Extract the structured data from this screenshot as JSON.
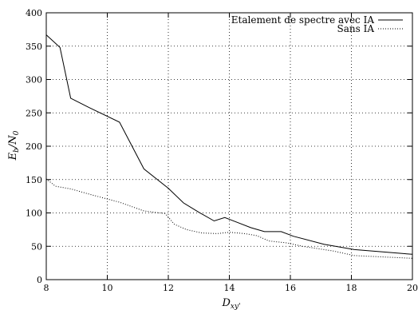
{
  "chart_data": {
    "type": "line",
    "title": "",
    "xlabel_main": "D",
    "xlabel_sub": "xy'",
    "ylabel_main": "E",
    "ylabel_sub_b": "b",
    "ylabel_slash": "/N",
    "ylabel_sub_0": "0",
    "xlim": [
      8,
      20
    ],
    "ylim": [
      0,
      400
    ],
    "xticks": [
      8,
      10,
      12,
      14,
      16,
      18,
      20
    ],
    "yticks": [
      0,
      50,
      100,
      150,
      200,
      250,
      300,
      350,
      400
    ],
    "grid": true,
    "legend_position": "top-right",
    "series": [
      {
        "name": "Etalement de spectre avec IA",
        "style": "solid",
        "x": [
          8.0,
          8.45,
          8.8,
          9.4,
          10.4,
          11.2,
          12.0,
          12.5,
          13.0,
          13.5,
          13.85,
          14.25,
          14.7,
          15.15,
          15.7,
          16.1,
          17.1,
          18.1,
          20.0
        ],
        "y": [
          367,
          348,
          272,
          258,
          236,
          166,
          137,
          115,
          101,
          88,
          93,
          86,
          78,
          72,
          72,
          65,
          53,
          45,
          38
        ]
      },
      {
        "name": "Sans IA",
        "style": "dotted",
        "x": [
          8.0,
          8.3,
          8.8,
          9.5,
          10.4,
          11.2,
          11.9,
          12.2,
          12.6,
          13.1,
          13.6,
          14.0,
          14.5,
          14.9,
          15.3,
          15.9,
          16.4,
          17.4,
          18.1,
          20.0
        ],
        "y": [
          151,
          140,
          136,
          127,
          116,
          103,
          99,
          83,
          75,
          70,
          69,
          71,
          69,
          66,
          58,
          55,
          50,
          43,
          36,
          32
        ]
      }
    ]
  }
}
